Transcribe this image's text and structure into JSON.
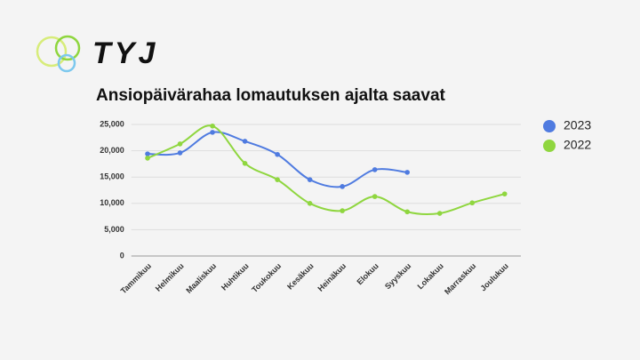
{
  "logo": "TYJ",
  "chart_data": {
    "type": "line",
    "title": "Ansiopäivärahaa lomautuksen ajalta saavat",
    "categories": [
      "Tammikuu",
      "Helmikuu",
      "Maaliskuu",
      "Huhtikuu",
      "Toukokuu",
      "Kesäkuu",
      "Heinäkuu",
      "Elokuu",
      "Syyskuu",
      "Lokakuu",
      "Marraskuu",
      "Joulukuu"
    ],
    "series": [
      {
        "name": "2023",
        "color": "#4f7be0",
        "values": [
          19400,
          19600,
          23500,
          21800,
          19300,
          14500,
          13200,
          16400,
          15900,
          null,
          null,
          null
        ]
      },
      {
        "name": "2022",
        "color": "#8fd63f",
        "values": [
          18600,
          21300,
          24700,
          17600,
          14500,
          10000,
          8600,
          11300,
          8400,
          8100,
          10100,
          11800
        ]
      }
    ],
    "ylim": [
      0,
      25000
    ],
    "yticks": [
      0,
      {
        "value": 5000,
        "label": "5,000"
      },
      {
        "value": 10000,
        "label": "10,000"
      },
      {
        "value": 15000,
        "label": "15,000"
      },
      {
        "value": 20000,
        "label": "20,000"
      },
      {
        "value": 25000,
        "label": "25,000"
      }
    ],
    "grid": true,
    "legend": "right",
    "smooth": true
  }
}
